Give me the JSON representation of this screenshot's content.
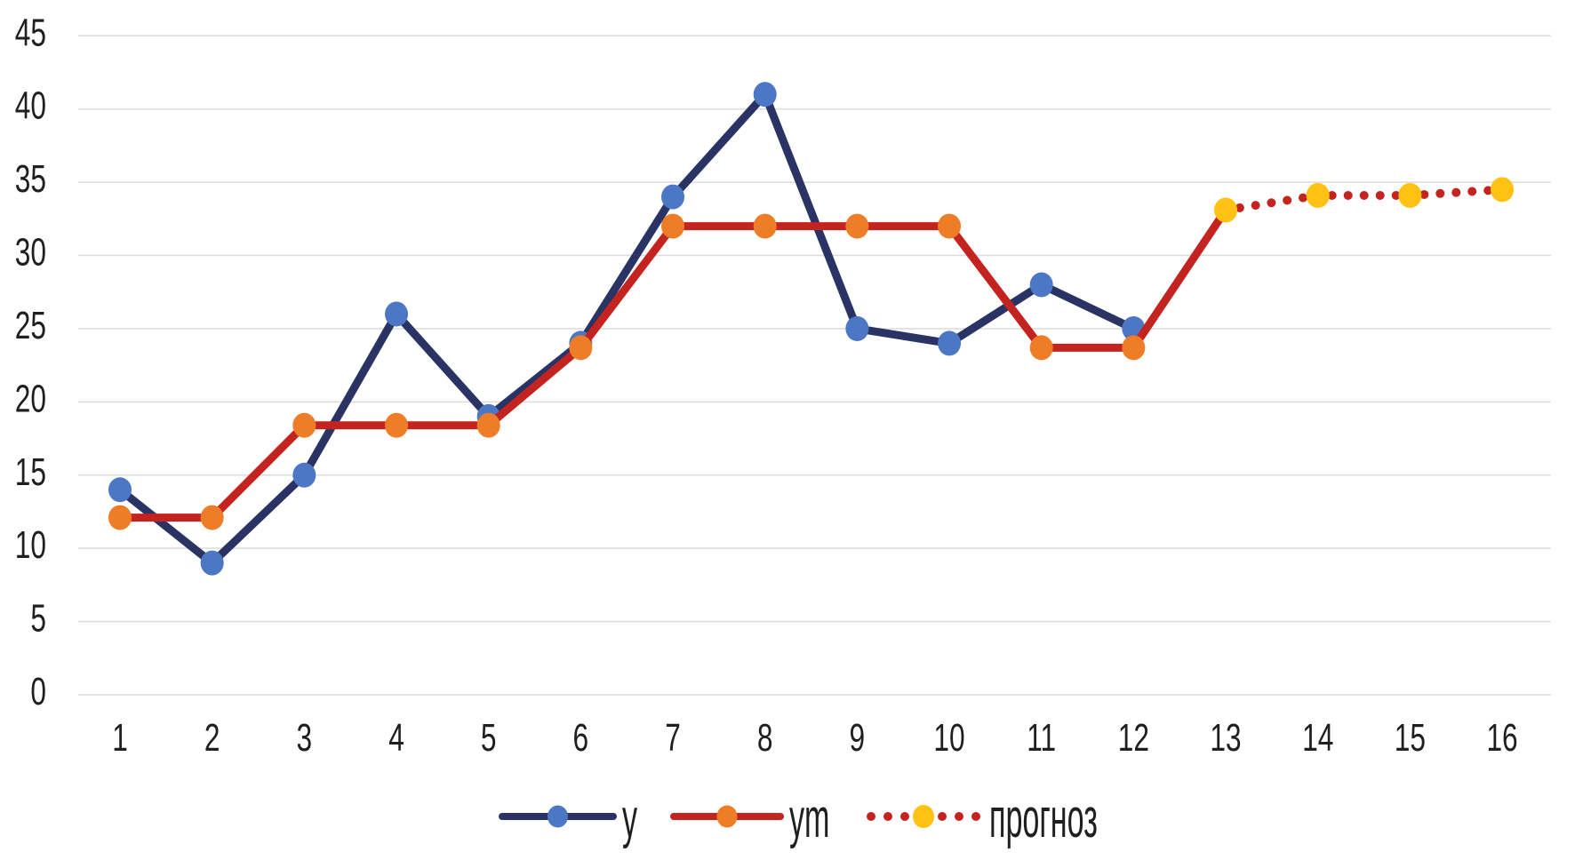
{
  "chart_data": {
    "type": "line",
    "title": "",
    "x_categories": [
      1,
      2,
      3,
      4,
      5,
      6,
      7,
      8,
      9,
      10,
      11,
      12,
      13,
      14,
      15,
      16
    ],
    "yticks": [
      0,
      5,
      10,
      15,
      20,
      25,
      30,
      35,
      40,
      45
    ],
    "ylim": [
      0,
      45
    ],
    "grid": "horizontal-only",
    "legend_position": "bottom-center",
    "colors": {
      "background": "#FFFFFF",
      "gridline": "#DBDBDB",
      "tick_text": "#1F1F1F"
    },
    "series": [
      {
        "name": "y",
        "style": "solid",
        "line_color": "#293465",
        "marker": "circle",
        "marker_color": "#4C77C5",
        "x": [
          1,
          2,
          3,
          4,
          5,
          6,
          7,
          8,
          9,
          10,
          11,
          12
        ],
        "values": [
          14,
          9,
          15,
          26,
          19,
          24,
          34,
          41,
          25,
          24,
          28,
          25
        ]
      },
      {
        "name": "ym",
        "style": "solid",
        "line_color": "#C4241F",
        "marker": "circle",
        "marker_color": "#EF7D28",
        "marker_through_x": 12,
        "x": [
          1,
          2,
          3,
          4,
          5,
          6,
          7,
          8,
          9,
          10,
          11,
          12,
          13
        ],
        "values": [
          12.1,
          12.1,
          18.4,
          18.4,
          18.4,
          23.7,
          32,
          32,
          32,
          32,
          23.7,
          23.7,
          33.1
        ]
      },
      {
        "name": "прогноз",
        "style": "dotted",
        "line_color": "#C4241F",
        "marker": "circle",
        "marker_color": "#FFC112",
        "x": [
          13,
          14,
          15,
          16
        ],
        "values": [
          33.1,
          34.1,
          34.1,
          34.5
        ]
      }
    ]
  }
}
